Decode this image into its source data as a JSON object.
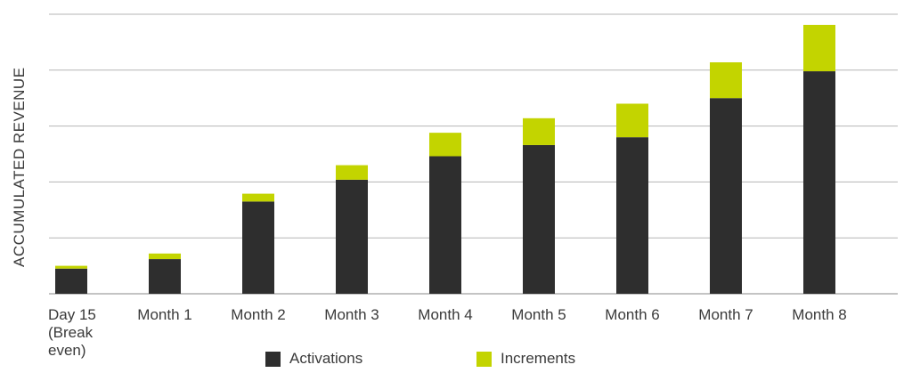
{
  "chart_data": {
    "type": "bar",
    "stacked": true,
    "ylabel": "ACCUMULATED REVENUE",
    "categories": [
      [
        "Day 15",
        "(Break",
        "even)"
      ],
      [
        "Month 1"
      ],
      [
        "Month 2"
      ],
      [
        "Month 3"
      ],
      [
        "Month 4"
      ],
      [
        "Month 5"
      ],
      [
        "Month 6"
      ],
      [
        "Month 7"
      ],
      [
        "Month 8"
      ]
    ],
    "series": [
      {
        "name": "Activations",
        "color": "#2e2e2e",
        "values": [
          0.45,
          0.62,
          1.65,
          2.04,
          2.46,
          2.66,
          2.8,
          3.5,
          3.98
        ]
      },
      {
        "name": "Increments",
        "color": "#c3d400",
        "values": [
          0.05,
          0.1,
          0.14,
          0.26,
          0.42,
          0.48,
          0.6,
          0.64,
          0.83
        ]
      }
    ],
    "ylim": [
      0,
      5
    ],
    "grid": true,
    "legend": "bottom"
  }
}
